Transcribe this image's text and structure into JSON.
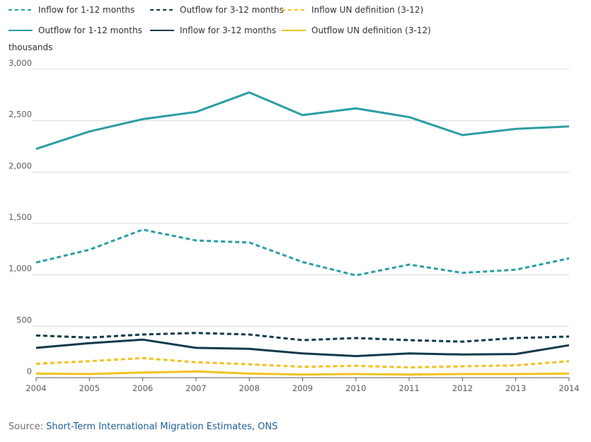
{
  "unit_label": "thousands",
  "source": {
    "prefix": "Source: ",
    "link_text": "Short-Term International Migration Estimates, ONS"
  },
  "colors": {
    "teal": "#2a9ea4",
    "navy": "#0f3a4a",
    "yellow": "#f1c21b",
    "grid": "#d9d9d9",
    "axis": "#5a5a5a"
  },
  "chart_data": {
    "type": "line",
    "x": [
      2004,
      2005,
      2006,
      2007,
      2008,
      2009,
      2010,
      2011,
      2012,
      2013,
      2014
    ],
    "ylim": [
      0,
      3000
    ],
    "yticks": [
      0,
      500,
      1000,
      1500,
      2000,
      2500,
      3000
    ],
    "ytick_labels": [
      "0",
      "500",
      "1,000",
      "1,500",
      "2,000",
      "2,500",
      "3,000"
    ],
    "grid": true,
    "legend_position": "top",
    "series": [
      {
        "name": "Inflow for 1-12 months",
        "color": "#2a9ea4",
        "dash": true,
        "values": [
          1120,
          1245,
          1440,
          1335,
          1315,
          1125,
          995,
          1100,
          1020,
          1050,
          1160
        ]
      },
      {
        "name": "Outflow for 3-12 months",
        "color": "#0f3a4a",
        "dash": true,
        "values": [
          410,
          390,
          420,
          435,
          420,
          365,
          385,
          365,
          350,
          385,
          400
        ]
      },
      {
        "name": "Inflow UN definition (3-12)",
        "color": "#f1c21b",
        "dash": true,
        "values": [
          135,
          160,
          190,
          150,
          130,
          105,
          115,
          100,
          110,
          120,
          160
        ]
      },
      {
        "name": "Outflow for 1-12 months",
        "color": "#2a9ea4",
        "dash": false,
        "values": [
          2225,
          2395,
          2515,
          2585,
          2775,
          2555,
          2620,
          2535,
          2360,
          2420,
          2445
        ]
      },
      {
        "name": "Inflow for 3-12 months",
        "color": "#0f3a4a",
        "dash": false,
        "values": [
          290,
          335,
          370,
          290,
          280,
          235,
          210,
          235,
          225,
          230,
          315
        ]
      },
      {
        "name": "Outflow UN definition (3-12)",
        "color": "#f1c21b",
        "dash": false,
        "values": [
          40,
          35,
          50,
          60,
          40,
          30,
          35,
          30,
          35,
          35,
          40
        ]
      }
    ]
  }
}
